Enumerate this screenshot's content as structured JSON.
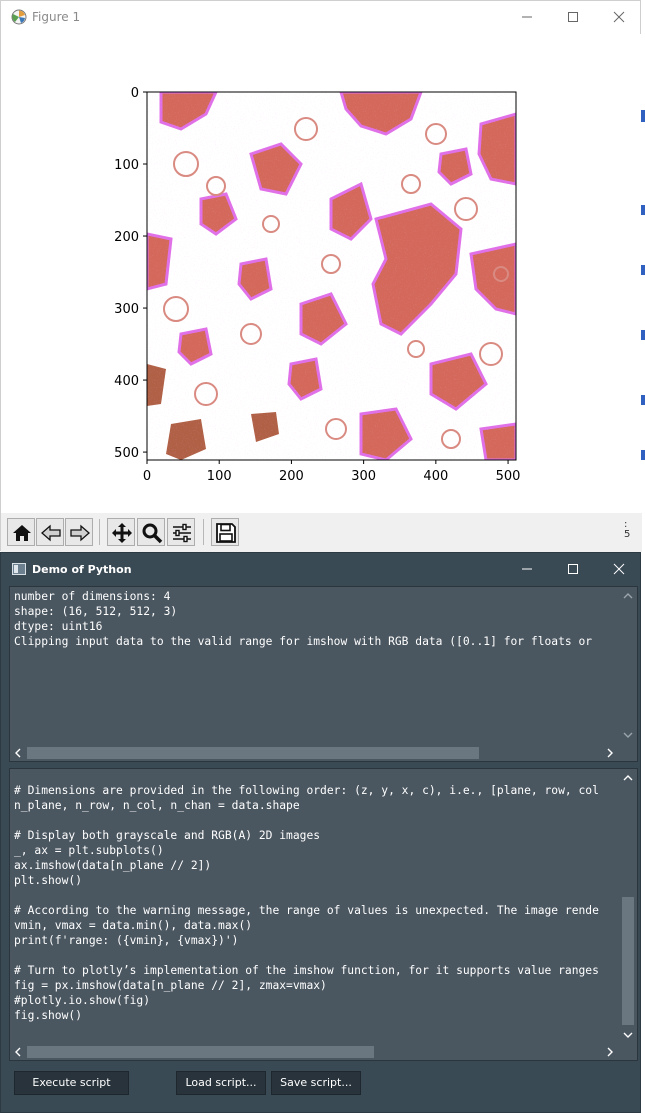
{
  "figure_window": {
    "title": "Figure 1"
  },
  "chart_data": {
    "type": "heatmap",
    "title": "",
    "xlabel": "",
    "ylabel": "",
    "xlim": [
      0,
      511
    ],
    "ylim": [
      511,
      0
    ],
    "x_ticks": [
      "0",
      "100",
      "200",
      "300",
      "400",
      "500"
    ],
    "x_tick_values": [
      0,
      100,
      200,
      300,
      400,
      500
    ],
    "y_ticks": [
      "0",
      "100",
      "200",
      "300",
      "400",
      "500"
    ],
    "y_tick_values": [
      0,
      100,
      200,
      300,
      400,
      500
    ],
    "colors": {
      "background": "#ffffff",
      "red_region": "#d4685a",
      "magenta_edge": "#e070e8",
      "brown_region": "#b06045"
    }
  },
  "toolbar": {
    "buttons": [
      "home-icon",
      "back-icon",
      "forward-icon",
      "pan-icon",
      "zoom-icon",
      "configure-icon",
      "save-icon"
    ],
    "edge_text": ":\n5"
  },
  "demo_window": {
    "title": "Demo of Python",
    "output_lines": [
      "number of dimensions: 4",
      "shape: (16, 512, 512, 3)",
      "dtype: uint16",
      "Clipping input data to the valid range for imshow with RGB data ([0..1] for floats or"
    ],
    "code_lines": [
      "# Dimensions are provided in the following order: (z, y, x, c), i.e., [plane, row, col",
      "n_plane, n_row, n_col, n_chan = data.shape",
      "",
      "# Display both grayscale and RGB(A) 2D images",
      "_, ax = plt.subplots()",
      "ax.imshow(data[n_plane // 2])",
      "plt.show()",
      "",
      "# According to the warning message, the range of values is unexpected. The image rende",
      "vmin, vmax = data.min(), data.max()",
      "print(f'range: ({vmin}, {vmax})')",
      "",
      "# Turn to plotly’s implementation of the imshow function, for it supports value ranges",
      "fig = px.imshow(data[n_plane // 2], zmax=vmax)",
      "#plotly.io.show(fig)",
      "fig.show()"
    ],
    "buttons": {
      "execute": "Execute script",
      "load": "Load script...",
      "save": "Save script..."
    },
    "colors": {
      "background": "#3a4a55",
      "panel": "#4a5660",
      "button": "#28333b"
    }
  }
}
